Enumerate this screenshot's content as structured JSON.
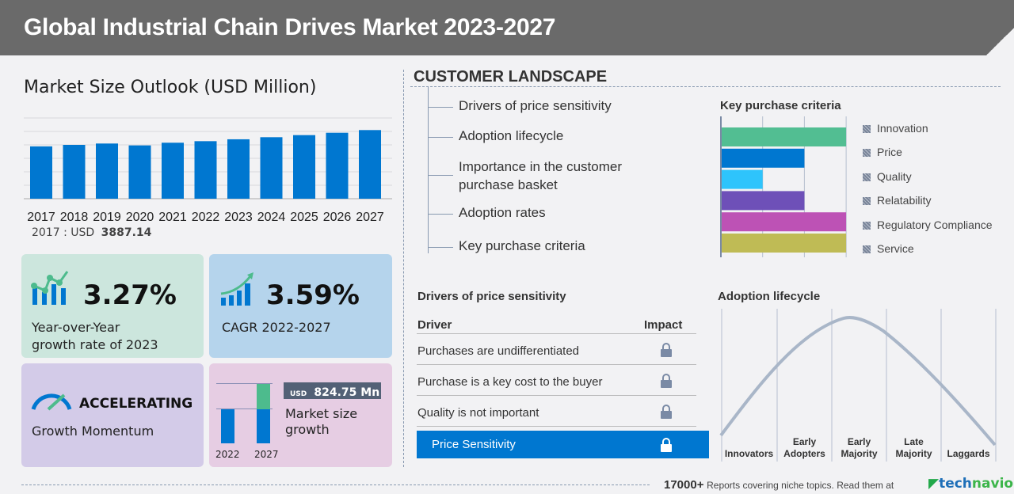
{
  "header": {
    "title": "Global Industrial Chain Drives Market 2023-2027"
  },
  "market": {
    "title": "Market Size Outlook (USD Million)",
    "base_label": "2017 : USD",
    "base_value": "3887.14"
  },
  "chart_data": {
    "type": "bar",
    "title": "Market Size Outlook (USD Million)",
    "categories": [
      "2017",
      "2018",
      "2019",
      "2020",
      "2021",
      "2022",
      "2023",
      "2024",
      "2025",
      "2026",
      "2027"
    ],
    "values": [
      3887.14,
      4000,
      4100,
      3960,
      4160,
      4275,
      4415,
      4570,
      4725,
      4900,
      5100
    ],
    "ylim": [
      0,
      6000
    ],
    "grid": true,
    "color": "#0077d0"
  },
  "tiles": {
    "yoy": {
      "value": "3.27%",
      "label1": "Year-over-Year",
      "label2": "growth rate of 2023",
      "icon": "bar-chart-trend-icon",
      "bg": "#cce6dd"
    },
    "cagr": {
      "value": "3.59%",
      "label": "CAGR  2022-2027",
      "icon": "growth-arrow-chart-icon",
      "bg": "#b5d4ec"
    },
    "momentum": {
      "value": "ACCELERATING",
      "label": "Growth Momentum",
      "icon": "speedometer-icon",
      "bg": "#d3cbe8"
    },
    "growth": {
      "currency": "USD",
      "value": "824.75 Mn",
      "label1": "Market size",
      "label2": "growth",
      "year1": "2022",
      "year2": "2027",
      "bg": "#e6cde3"
    }
  },
  "landscape": {
    "title": "CUSTOMER  LANDSCAPE",
    "items": [
      "Drivers of price sensitivity",
      "Adoption lifecycle",
      "Importance in the customer",
      "purchase basket",
      "Adoption rates",
      "Key purchase criteria"
    ]
  },
  "kpc": {
    "title": "Key purchase criteria",
    "items": [
      {
        "label": "Innovation",
        "value": 3,
        "color": "#52be92"
      },
      {
        "label": "Price",
        "value": 2,
        "color": "#0077d0"
      },
      {
        "label": "Quality",
        "value": 1,
        "color": "#2ec4fc"
      },
      {
        "label": "Relatability",
        "value": 2,
        "color": "#6e50b8"
      },
      {
        "label": "Regulatory Compliance",
        "value": 3,
        "color": "#bd52b5"
      },
      {
        "label": "Service",
        "value": 3,
        "color": "#bfbb55"
      }
    ],
    "max": 3
  },
  "drivers": {
    "title": "Drivers of price sensitivity",
    "col_driver": "Driver",
    "col_impact": "Impact",
    "rows": [
      "Purchases are undifferentiated",
      "Purchase is a key cost to the buyer",
      "Quality is not important"
    ],
    "highlight": "Price Sensitivity"
  },
  "adoption": {
    "title": "Adoption lifecycle",
    "stages": [
      [
        "",
        "Innovators"
      ],
      [
        "Early",
        "Adopters"
      ],
      [
        "Early",
        "Majority"
      ],
      [
        "Late",
        "Majority"
      ],
      [
        "",
        "Laggards"
      ]
    ]
  },
  "footer": {
    "count": "17000+",
    "text": "Reports covering niche topics. Read them at",
    "brand_a": "tech",
    "brand_b": "navio"
  }
}
